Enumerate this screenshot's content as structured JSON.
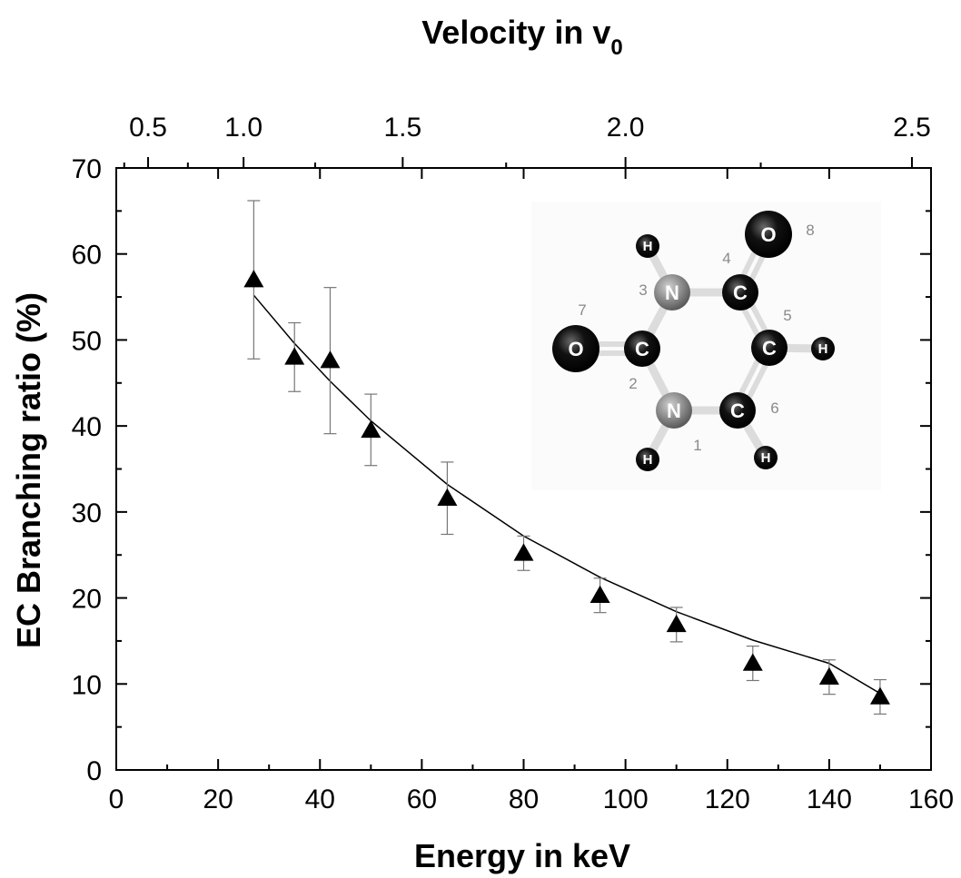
{
  "chart_data": {
    "type": "scatter",
    "xlabel": "Energy in keV",
    "ylabel": "EC Branching ratio (%)",
    "top_axis": {
      "label": "Velocity in v",
      "label_subscript": "0",
      "ticks": [
        0.5,
        1.0,
        1.5,
        2.0,
        2.5
      ],
      "tick_labels": [
        "0.5",
        "1.0",
        "1.5",
        "2.0",
        "2.5"
      ]
    },
    "xlim": [
      0,
      160
    ],
    "ylim": [
      0,
      70
    ],
    "x_ticks": [
      0,
      20,
      40,
      60,
      80,
      100,
      120,
      140,
      160
    ],
    "x_tick_labels": [
      "0",
      "20",
      "40",
      "60",
      "80",
      "100",
      "120",
      "140",
      "160"
    ],
    "y_ticks": [
      0,
      10,
      20,
      30,
      40,
      50,
      60,
      70
    ],
    "y_tick_labels": [
      "0",
      "10",
      "20",
      "30",
      "40",
      "50",
      "60",
      "70"
    ],
    "grid": false,
    "series": [
      {
        "marker": "triangle",
        "color": "#000000",
        "points": [
          {
            "x": 27,
            "y": 57.0,
            "err_low": 47.8,
            "err_high": 66.2
          },
          {
            "x": 35,
            "y": 48.0,
            "err_low": 44.0,
            "err_high": 52.0
          },
          {
            "x": 42,
            "y": 47.6,
            "err_low": 39.1,
            "err_high": 56.1
          },
          {
            "x": 50,
            "y": 39.5,
            "err_low": 35.4,
            "err_high": 43.7
          },
          {
            "x": 65,
            "y": 31.6,
            "err_low": 27.4,
            "err_high": 35.8
          },
          {
            "x": 80,
            "y": 25.2,
            "err_low": 23.2,
            "err_high": 27.2
          },
          {
            "x": 95,
            "y": 20.3,
            "err_low": 18.3,
            "err_high": 22.3
          },
          {
            "x": 110,
            "y": 16.9,
            "err_low": 14.9,
            "err_high": 18.9
          },
          {
            "x": 125,
            "y": 12.4,
            "err_low": 10.4,
            "err_high": 14.4
          },
          {
            "x": 140,
            "y": 10.8,
            "err_low": 8.8,
            "err_high": 12.8
          },
          {
            "x": 150,
            "y": 8.5,
            "err_low": 6.5,
            "err_high": 10.5
          }
        ]
      }
    ],
    "fit_curve": {
      "x": [
        27,
        35,
        42,
        50,
        65,
        80,
        95,
        110,
        125,
        140,
        150
      ],
      "y": [
        55.2,
        49.6,
        45.2,
        40.6,
        33.2,
        27.2,
        22.4,
        18.4,
        15.1,
        12.4,
        8.9
      ]
    }
  },
  "inset": {
    "description_atoms": [
      {
        "element": "N",
        "number": "1"
      },
      {
        "element": "C",
        "number": "2"
      },
      {
        "element": "N",
        "number": "3"
      },
      {
        "element": "C",
        "number": "4"
      },
      {
        "element": "C",
        "number": "5"
      },
      {
        "element": "C",
        "number": "6"
      },
      {
        "element": "O",
        "number": "7"
      },
      {
        "element": "O",
        "number": "8"
      }
    ],
    "hydrogen_label": "H"
  }
}
